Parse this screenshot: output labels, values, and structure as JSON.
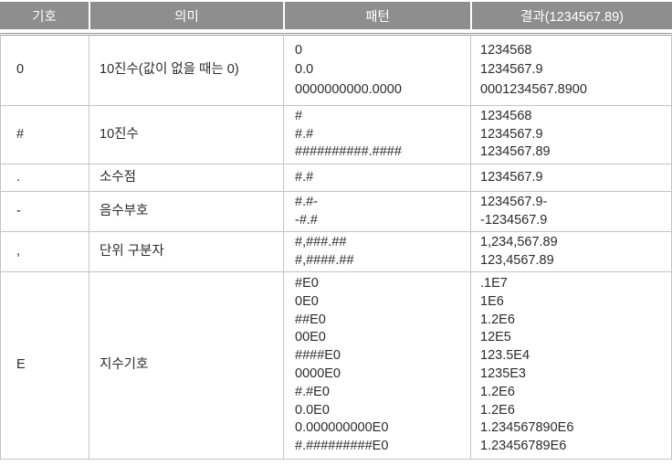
{
  "colors": {
    "header_background": "#8e8e8e",
    "header_text": "#ffffff",
    "grid_line": "#c4c4c4",
    "text": "#2b2b2b"
  },
  "table": {
    "headers": [
      "기호",
      "의미",
      "패턴",
      "결과(1234567.89)"
    ],
    "rows": [
      {
        "symbol": "0",
        "meaning": "10진수(값이 없을 때는 0)",
        "patterns": [
          "0",
          "0.0",
          "0000000000.0000"
        ],
        "results": [
          "1234568",
          "1234567.9",
          "0001234567.8900"
        ]
      },
      {
        "symbol": "#",
        "meaning": "10진수",
        "patterns": [
          "#",
          "#.#",
          "##########.####"
        ],
        "results": [
          "1234568",
          "1234567.9",
          "1234567.89"
        ]
      },
      {
        "symbol": ".",
        "meaning": "소수점",
        "patterns": [
          "#.#"
        ],
        "results": [
          "1234567.9"
        ]
      },
      {
        "symbol": "-",
        "meaning": "음수부호",
        "patterns": [
          "#.#-",
          "-#.#"
        ],
        "results": [
          "1234567.9-",
          "-1234567.9"
        ]
      },
      {
        "symbol": ",",
        "meaning": "단위 구분자",
        "patterns": [
          "#,###.##",
          "#,####.##"
        ],
        "results": [
          "1,234,567.89",
          "123,4567.89"
        ]
      },
      {
        "symbol": "E",
        "meaning": "지수기호",
        "patterns": [
          "#E0",
          "0E0",
          "##E0",
          "00E0",
          "####E0",
          "0000E0",
          "#.#E0",
          "0.0E0",
          "0.000000000E0",
          "#.#########E0"
        ],
        "results": [
          ".1E7",
          "1E6",
          "1.2E6",
          "12E5",
          "123.5E4",
          "1235E3",
          "1.2E6",
          "1.2E6",
          "1.234567890E6",
          "1.23456789E6"
        ]
      }
    ]
  }
}
